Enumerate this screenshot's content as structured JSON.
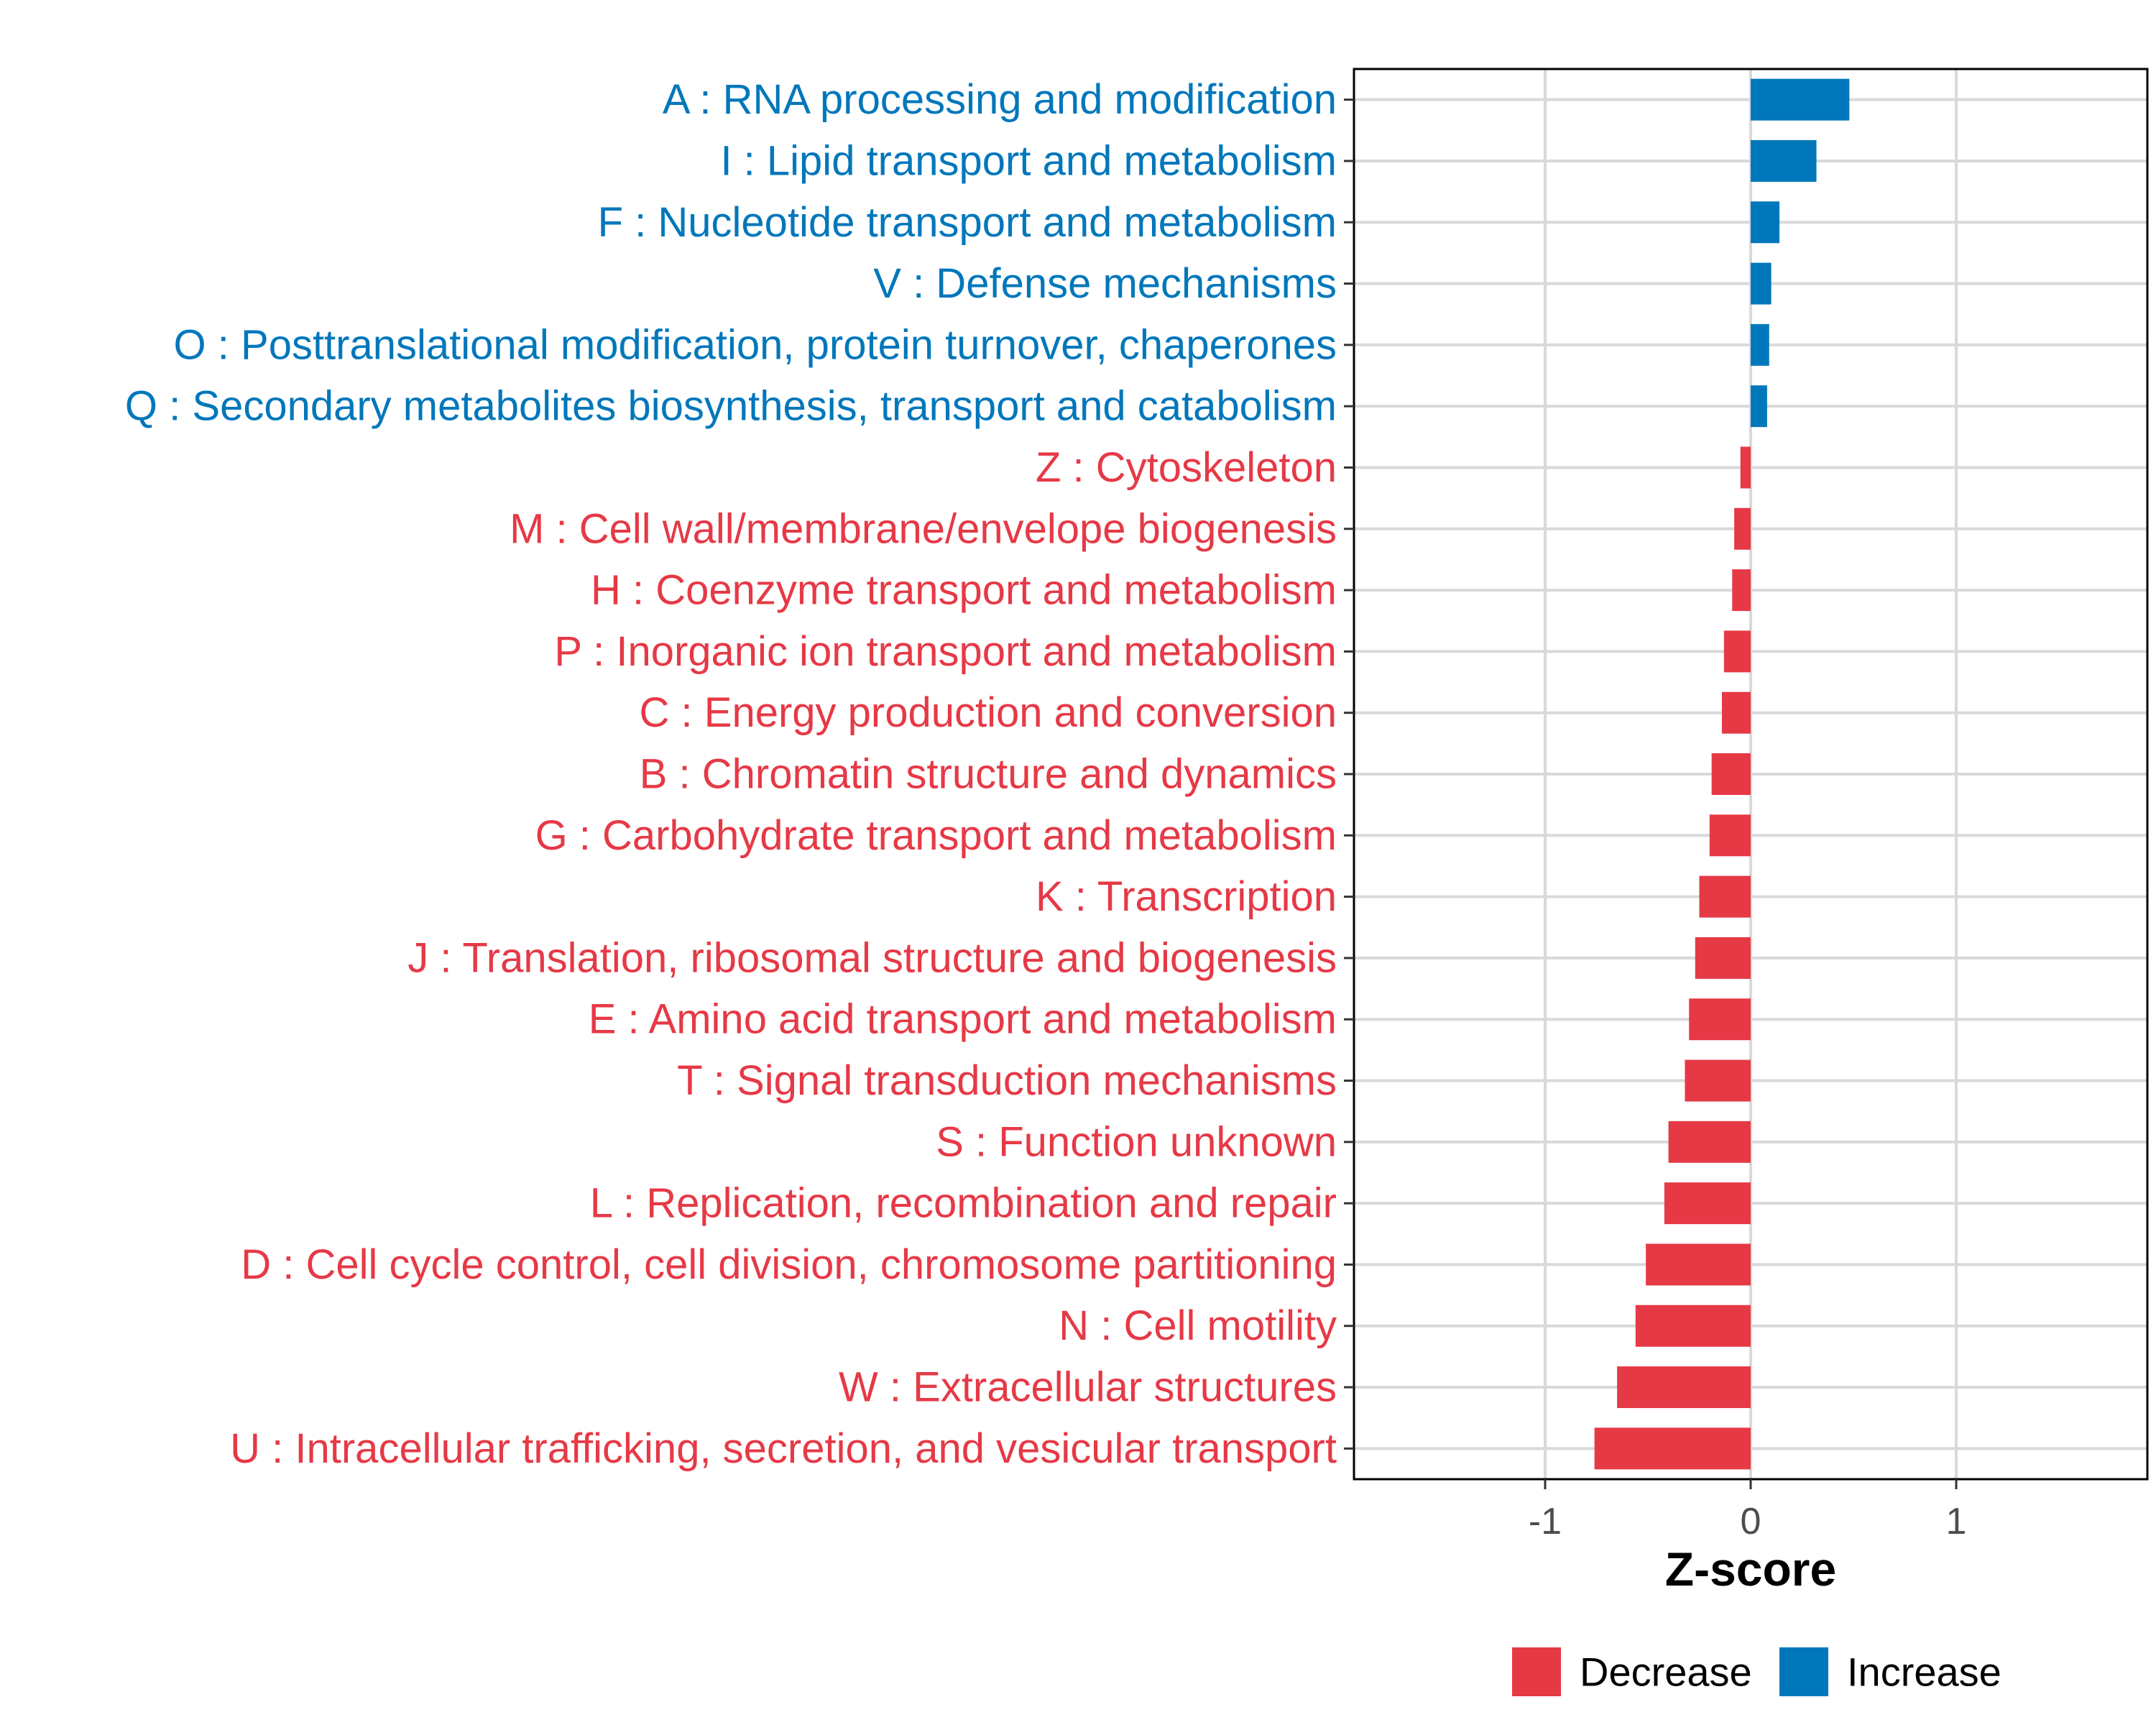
{
  "chart_data": {
    "type": "bar",
    "orientation": "horizontal",
    "xlabel": "Z-score",
    "ylabel": "",
    "xlim": [
      -1.93,
      1.93
    ],
    "xticks": [
      -1,
      0,
      1
    ],
    "xtick_labels": [
      "-1",
      "0",
      "1"
    ],
    "grid": true,
    "colors": {
      "Increase": "#0077BB",
      "Decrease": "#E63946"
    },
    "legend": {
      "position": "bottom",
      "entries": [
        "Decrease",
        "Increase"
      ]
    },
    "categories": [
      "A : RNA processing and modification",
      "I : Lipid transport and metabolism",
      "F : Nucleotide transport and metabolism",
      "V : Defense mechanisms",
      "O : Posttranslational modification, protein turnover, chaperones",
      "Q : Secondary metabolites biosynthesis, transport and catabolism",
      "Z : Cytoskeleton",
      "M : Cell wall/membrane/envelope biogenesis",
      "H : Coenzyme transport and metabolism",
      "P : Inorganic ion transport and metabolism",
      "C : Energy production and conversion",
      "B : Chromatin structure and dynamics",
      "G : Carbohydrate transport and metabolism",
      "K : Transcription",
      "J : Translation, ribosomal structure and biogenesis",
      "E : Amino acid transport and metabolism",
      "T : Signal transduction mechanisms",
      "S : Function unknown",
      "L : Replication, recombination and repair",
      "D : Cell cycle control, cell division, chromosome partitioning",
      "N : Cell motility",
      "W : Extracellular structures",
      "U : Intracellular trafficking, secretion, and vesicular transport"
    ],
    "values": [
      0.48,
      0.32,
      0.14,
      0.1,
      0.09,
      0.08,
      -0.05,
      -0.08,
      -0.09,
      -0.13,
      -0.14,
      -0.19,
      -0.2,
      -0.25,
      -0.27,
      -0.3,
      -0.32,
      -0.4,
      -0.42,
      -0.51,
      -0.56,
      -0.65,
      -0.76
    ],
    "groups": [
      "Increase",
      "Increase",
      "Increase",
      "Increase",
      "Increase",
      "Increase",
      "Decrease",
      "Decrease",
      "Decrease",
      "Decrease",
      "Decrease",
      "Decrease",
      "Decrease",
      "Decrease",
      "Decrease",
      "Decrease",
      "Decrease",
      "Decrease",
      "Decrease",
      "Decrease",
      "Decrease",
      "Decrease",
      "Decrease"
    ]
  }
}
